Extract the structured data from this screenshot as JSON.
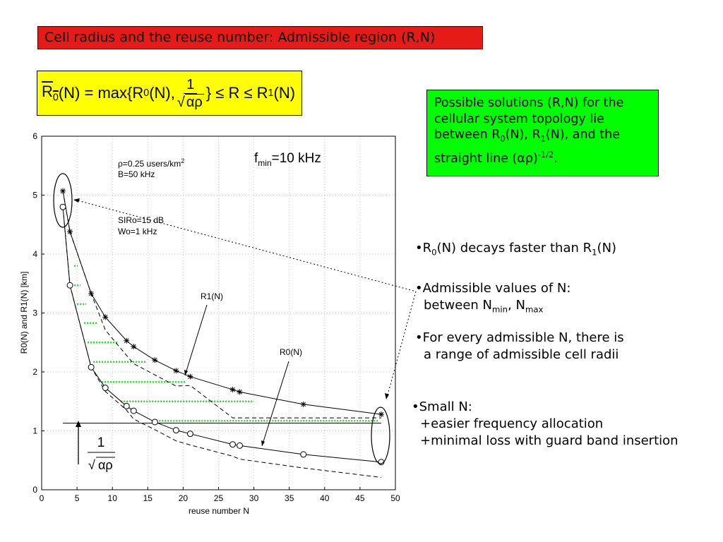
{
  "slide": {
    "title": "Cell radius and the reuse number: Admissible region (R,N)",
    "formula": {
      "lhs": "R",
      "lhs_sub": "0",
      "mid": "(N) = max{R",
      "mid_sub": "0",
      "mid2": "(N),",
      "frac_num": "1",
      "frac_den": "αρ",
      "rest": "} ≤ R ≤ R",
      "rest_sub": "1",
      "end": "(N)"
    },
    "green_note": {
      "t1": "Possible solutions (R,N) for the cellular system topology lie between R",
      "s1": "0",
      "t2": "(N), R",
      "s2": "1",
      "t3": "(N), and the straight line (αρ)",
      "sup": "-1/2",
      "t4": "."
    },
    "bullets": {
      "b1_a": "•R",
      "b1_s1": "0",
      "b1_b": "(N) decays faster than R",
      "b1_s2": "1",
      "b1_c": "(N)",
      "b2_l1": "•Admissible values of N:",
      "b2_l2a": "between N",
      "b2_s1": "min",
      "b2_l2b": ", N",
      "b2_s2": "max",
      "b3_l1": "•For every admissible N, there is",
      "b3_l2": "a range of admissible cell radii",
      "b4_l1": "•Small N:",
      "b4_l2": "+easier frequency allocation",
      "b4_l3": "+minimal loss with guard band insertion"
    },
    "line_label": {
      "num": "1",
      "den": "αρ"
    }
  },
  "chart_data": {
    "type": "line",
    "xlabel": "reuse number N",
    "ylabel": "R0(N) and R1(N)  [km]",
    "xlim": [
      0,
      50
    ],
    "ylim": [
      0,
      6
    ],
    "xticks": [
      "0",
      "5",
      "10",
      "15",
      "20",
      "25",
      "30",
      "35",
      "40",
      "45",
      "50"
    ],
    "yticks": [
      "0",
      "1",
      "2",
      "3",
      "4",
      "5",
      "6"
    ],
    "grid": true,
    "annotations": {
      "fmin_a": "f",
      "fmin_sub": "min",
      "fmin_b": "=10 kHz",
      "rho_a": "ρ=0.25 users/km",
      "rho_sup": "2",
      "bw": "B=50 kHz",
      "siro": "SIRo=15 dB",
      "wo": "Wo=1 kHz",
      "r1_label": "R1(N)",
      "r0_label": "R0(N)"
    },
    "threshold": 1.13,
    "series": [
      {
        "name": "R1(N)",
        "style": "solid-star",
        "x": [
          3,
          4,
          7,
          9,
          12,
          13,
          16,
          19,
          21,
          27,
          28,
          37,
          48
        ],
        "y": [
          5.07,
          4.38,
          3.33,
          2.93,
          2.53,
          2.43,
          2.2,
          2.02,
          1.92,
          1.7,
          1.66,
          1.45,
          1.28
        ]
      },
      {
        "name": "R0(N)",
        "style": "solid-circle",
        "x": [
          3,
          4,
          7,
          9,
          12,
          13,
          16,
          19,
          21,
          27,
          28,
          37,
          48
        ],
        "y": [
          4.8,
          3.47,
          2.08,
          1.73,
          1.42,
          1.34,
          1.15,
          1.01,
          0.95,
          0.77,
          0.75,
          0.6,
          0.47
        ]
      },
      {
        "name": "R1(N) envelope",
        "style": "dashed",
        "x": [
          3,
          4,
          7,
          9,
          12,
          13,
          16,
          19,
          21,
          27,
          28,
          37,
          48
        ],
        "y": [
          5.07,
          4.38,
          3.33,
          2.71,
          2.28,
          2.14,
          1.95,
          1.76,
          1.77,
          1.22,
          1.22,
          1.22,
          1.22
        ]
      },
      {
        "name": "R0(N) envelope",
        "style": "dashed",
        "x": [
          3,
          4,
          7,
          9,
          12,
          13,
          16,
          19,
          21,
          27,
          28,
          37,
          48
        ],
        "y": [
          4.8,
          3.47,
          2.08,
          1.67,
          1.35,
          1.2,
          1.02,
          0.83,
          0.76,
          0.57,
          0.52,
          0.37,
          0.21
        ]
      }
    ],
    "admissible_rows": [
      {
        "y": 3.8,
        "x0": 4.6,
        "x1": 5.1
      },
      {
        "y": 3.47,
        "x0": 4.6,
        "x1": 5.5
      },
      {
        "y": 3.15,
        "x0": 5.0,
        "x1": 6.3
      },
      {
        "y": 2.83,
        "x0": 6.0,
        "x1": 7.8
      },
      {
        "y": 2.5,
        "x0": 6.5,
        "x1": 10.8
      },
      {
        "y": 2.17,
        "x0": 7.3,
        "x1": 14.7
      },
      {
        "y": 1.83,
        "x0": 8.5,
        "x1": 20.3
      },
      {
        "y": 1.5,
        "x0": 11.2,
        "x1": 30.0
      },
      {
        "y": 1.17,
        "x0": 15.8,
        "x1": 47.5
      }
    ]
  }
}
